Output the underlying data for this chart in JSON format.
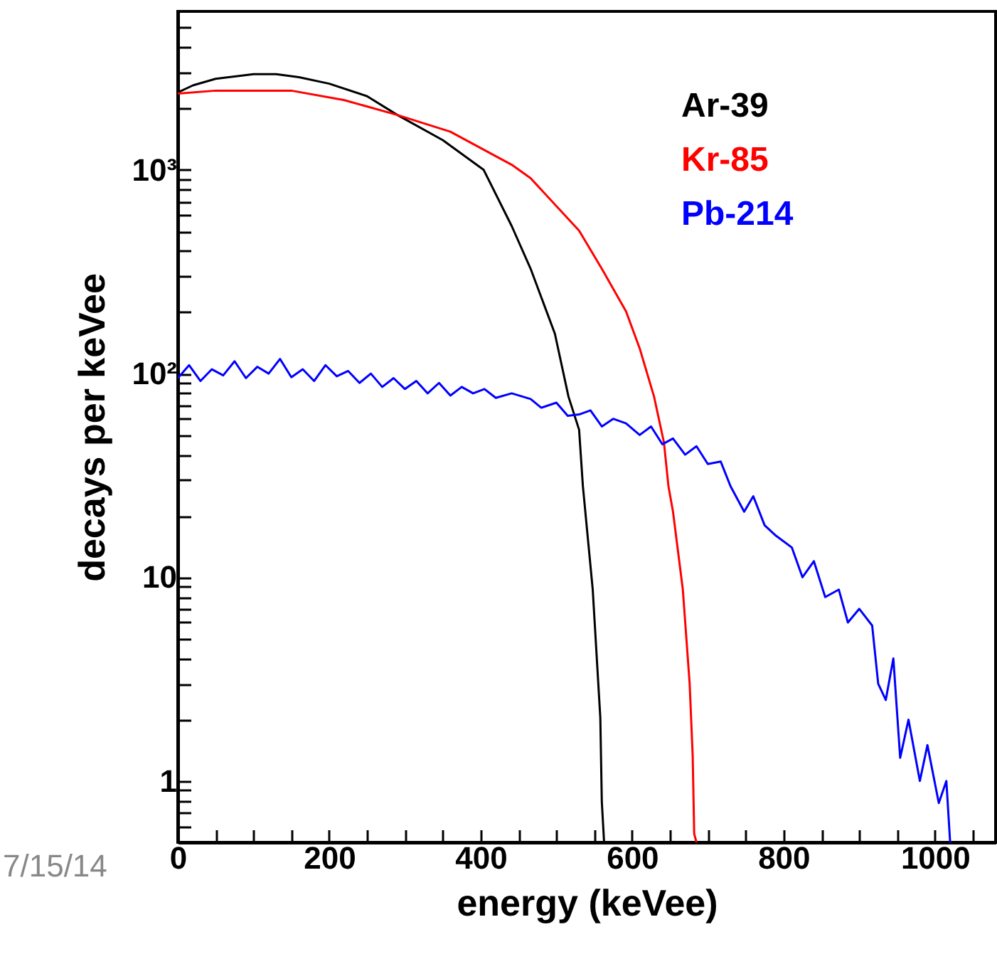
{
  "chart_data": {
    "type": "line",
    "xlabel": "energy (keVee)",
    "ylabel": "decays per keVee",
    "log": "y",
    "legend": "top right",
    "annotations": [
      "7/15/14"
    ],
    "xlim": [
      0,
      1080
    ],
    "ylim": [
      0.5,
      6000
    ],
    "xticks": [
      0,
      {
        "value": 50,
        "label": null
      },
      {
        "value": 100,
        "label": null
      },
      {
        "value": 150,
        "label": null
      },
      200,
      {
        "value": 250,
        "label": null
      },
      {
        "value": 300,
        "label": null
      },
      {
        "value": 350,
        "label": null
      },
      400,
      {
        "value": 450,
        "label": null
      },
      {
        "value": 500,
        "label": null
      },
      {
        "value": 550,
        "label": null
      },
      600,
      {
        "value": 650,
        "label": null
      },
      {
        "value": 700,
        "label": null
      },
      {
        "value": 750,
        "label": null
      },
      800,
      {
        "value": 850,
        "label": null
      },
      {
        "value": 900,
        "label": null
      },
      {
        "value": 950,
        "label": null
      },
      1000,
      {
        "value": 1050,
        "label": null
      }
    ],
    "yticks": [
      {
        "value": 0.6,
        "label": null
      },
      {
        "value": 0.7,
        "label": null
      },
      {
        "value": 0.8,
        "label": null
      },
      {
        "value": 0.9,
        "label": null
      },
      1,
      {
        "value": 2,
        "label": null
      },
      {
        "value": 3,
        "label": null
      },
      {
        "value": 4,
        "label": null
      },
      {
        "value": 5,
        "label": null
      },
      {
        "value": 6,
        "label": null
      },
      {
        "value": 7,
        "label": null
      },
      {
        "value": 8,
        "label": null
      },
      {
        "value": 9,
        "label": null
      },
      10,
      {
        "value": 20,
        "label": null
      },
      {
        "value": 30,
        "label": null
      },
      {
        "value": 40,
        "label": null
      },
      {
        "value": 50,
        "label": null
      },
      {
        "value": 60,
        "label": null
      },
      {
        "value": 70,
        "label": null
      },
      {
        "value": 80,
        "label": null
      },
      {
        "value": 90,
        "label": null
      },
      {
        "value": 100,
        "label": "10²"
      },
      {
        "value": 200,
        "label": null
      },
      {
        "value": 300,
        "label": null
      },
      {
        "value": 400,
        "label": null
      },
      {
        "value": 500,
        "label": null
      },
      {
        "value": 600,
        "label": null
      },
      {
        "value": 700,
        "label": null
      },
      {
        "value": 800,
        "label": null
      },
      {
        "value": 900,
        "label": null
      },
      {
        "value": 1000,
        "label": "10³"
      },
      {
        "value": 2000,
        "label": null
      },
      {
        "value": 3000,
        "label": null
      },
      {
        "value": 4000,
        "label": null
      },
      {
        "value": 5000,
        "label": null
      }
    ],
    "series": [
      {
        "name": "Ar-39",
        "color": "#000000",
        "x": [
          0,
          20,
          50,
          100,
          130,
          160,
          200,
          250,
          290,
          350,
          404,
          441,
          466,
          498,
          516,
          530,
          535,
          548,
          558,
          560,
          563
        ],
        "values": [
          2400,
          2600,
          2800,
          2950,
          2950,
          2850,
          2650,
          2300,
          1860,
          1400,
          1000,
          530,
          327,
          157,
          77,
          53,
          28,
          8.7,
          2.05,
          0.79,
          0.5
        ]
      },
      {
        "name": "Kr-85",
        "color": "#ff0000",
        "x": [
          0,
          50,
          150,
          220,
          290,
          360,
          441,
          466,
          530,
          560,
          592,
          610,
          629,
          642,
          648,
          654,
          667,
          676,
          680,
          682,
          685
        ],
        "values": [
          2370,
          2450,
          2450,
          2200,
          1860,
          1540,
          1060,
          910,
          503,
          327,
          202,
          133,
          77,
          46,
          28,
          21,
          8.7,
          3.0,
          1.33,
          0.55,
          0.5
        ]
      },
      {
        "name": "Pb-214",
        "color": "#0000ff",
        "x": [
          0,
          15,
          30,
          45,
          60,
          75,
          90,
          105,
          120,
          135,
          150,
          165,
          180,
          195,
          210,
          225,
          240,
          255,
          270,
          285,
          300,
          315,
          330,
          345,
          360,
          375,
          390,
          405,
          420,
          441,
          466,
          480,
          500,
          515,
          530,
          545,
          560,
          575,
          592,
          610,
          625,
          640,
          654,
          670,
          685,
          700,
          717,
          730,
          748,
          760,
          775,
          790,
          811,
          825,
          840,
          855,
          873,
          885,
          900,
          917,
          925,
          935,
          945,
          954,
          965,
          980,
          990,
          1005,
          1015,
          1020
        ],
        "values": [
          95,
          110,
          92,
          105,
          98,
          115,
          95,
          108,
          100,
          118,
          96,
          105,
          92,
          110,
          97,
          103,
          90,
          100,
          86,
          95,
          84,
          92,
          80,
          90,
          78,
          86,
          80,
          84,
          76,
          80,
          75,
          68,
          72,
          62,
          63,
          66,
          55,
          60,
          57,
          50,
          55,
          45,
          48,
          40,
          44,
          36,
          37,
          28,
          21,
          25,
          18,
          16,
          14,
          10,
          12,
          8,
          8.7,
          6,
          7,
          5.8,
          3,
          2.5,
          4,
          1.3,
          2,
          1.0,
          1.5,
          0.78,
          1,
          0.5
        ]
      }
    ]
  }
}
